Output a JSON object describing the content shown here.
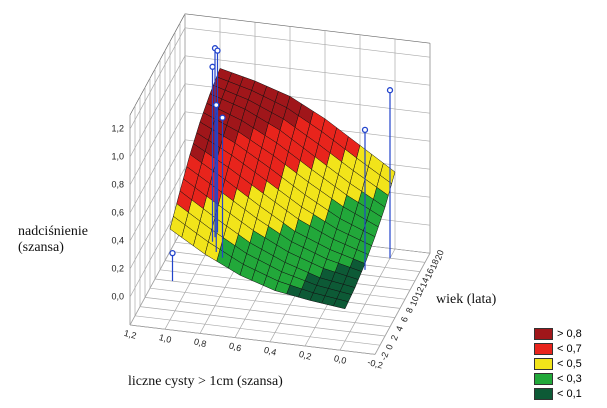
{
  "chart_data": {
    "type": "surface",
    "xlabel": "liczne cysty > 1cm (szansa)",
    "ylabel": "wiek (lata)",
    "zlabel": "nadciśnienie (szansa)",
    "x": [
      0,
      0.2,
      0.4,
      0.6,
      0.8,
      1.0
    ],
    "y": [
      0,
      4,
      8,
      12,
      16,
      20
    ],
    "z": [
      [
        0.03,
        0.06,
        0.1,
        0.18,
        0.3,
        0.45
      ],
      [
        0.05,
        0.09,
        0.17,
        0.28,
        0.43,
        0.59
      ],
      [
        0.09,
        0.16,
        0.26,
        0.41,
        0.57,
        0.72
      ],
      [
        0.15,
        0.25,
        0.39,
        0.55,
        0.7,
        0.82
      ],
      [
        0.23,
        0.37,
        0.53,
        0.69,
        0.81,
        0.89
      ],
      [
        0.35,
        0.51,
        0.67,
        0.8,
        0.88,
        0.94
      ]
    ],
    "points": {
      "x": [
        1.0,
        1.0,
        1.0,
        0.95,
        0.9,
        1.1,
        0.0,
        0.1
      ],
      "y": [
        18,
        19,
        17,
        15,
        14,
        8,
        18,
        15
      ],
      "z": [
        1.15,
        1.1,
        1.05,
        0.85,
        0.8,
        0.0,
        1.0,
        0.8
      ],
      "color": "#2244cc"
    },
    "xlim": [
      -0.2,
      1.2
    ],
    "ylim": [
      -2,
      20
    ],
    "zlim": [
      -0.2,
      1.3
    ],
    "xticks": [
      {
        "value": 1.2,
        "label": "1,2"
      },
      {
        "value": 1.0,
        "label": "1,0"
      },
      {
        "value": 0.8,
        "label": "0,8"
      },
      {
        "value": 0.6,
        "label": "0,6"
      },
      {
        "value": 0.4,
        "label": "0,4"
      },
      {
        "value": 0.2,
        "label": "0,2"
      },
      {
        "value": 0.0,
        "label": "0,0"
      },
      {
        "value": -0.2,
        "label": "-0,2"
      }
    ],
    "yticks": [
      -2,
      0,
      2,
      4,
      6,
      8,
      10,
      12,
      14,
      16,
      18,
      20
    ],
    "zticks": [
      {
        "value": 0.0,
        "label": "0,0"
      },
      {
        "value": 0.2,
        "label": "0,2"
      },
      {
        "value": 0.4,
        "label": "0,4"
      },
      {
        "value": 0.6,
        "label": "0,6"
      },
      {
        "value": 0.8,
        "label": "0,8"
      },
      {
        "value": 1.0,
        "label": "1,0"
      },
      {
        "value": 1.2,
        "label": "1,2"
      }
    ],
    "grid": true,
    "legend": [
      {
        "value": 0.8,
        "label": "> 0,8",
        "color": "#a0161a"
      },
      {
        "value": 0.7,
        "label": "< 0,7",
        "color": "#e8241c"
      },
      {
        "value": 0.5,
        "label": "< 0,5",
        "color": "#f2e41a"
      },
      {
        "value": 0.3,
        "label": "< 0,3",
        "color": "#22a83a"
      },
      {
        "value": 0.1,
        "label": "< 0,1",
        "color": "#0d5a36"
      }
    ]
  }
}
